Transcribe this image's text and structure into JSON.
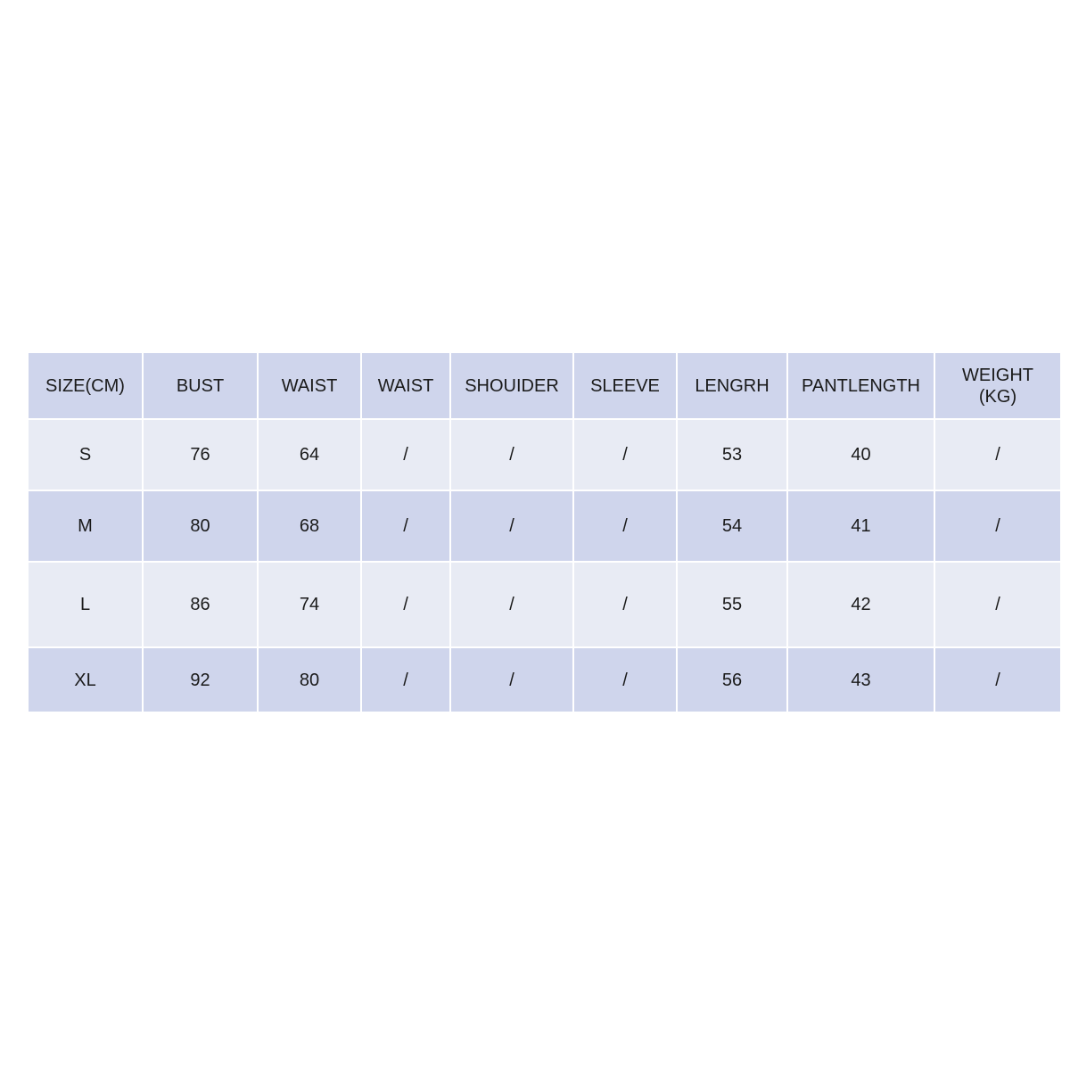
{
  "table": {
    "headers": [
      "SIZE(CM)",
      "BUST",
      "WAIST",
      "WAIST",
      "SHOUIDER",
      "SLEEVE",
      "LENGRH",
      "PANTLENGTH",
      "WEIGHT\n(KG)"
    ],
    "rows": [
      [
        "S",
        "76",
        "64",
        "/",
        "/",
        "/",
        "53",
        "40",
        "/"
      ],
      [
        "M",
        "80",
        "68",
        "/",
        "/",
        "/",
        "54",
        "41",
        "/"
      ],
      [
        "L",
        "86",
        "74",
        "/",
        "/",
        "/",
        "55",
        "42",
        "/"
      ],
      [
        "XL",
        "92",
        "80",
        "/",
        "/",
        "/",
        "56",
        "43",
        "/"
      ]
    ]
  },
  "colors": {
    "header": "#cfd5ec",
    "row_light": "#e8ebf4",
    "row_dark": "#cfd5ec"
  }
}
